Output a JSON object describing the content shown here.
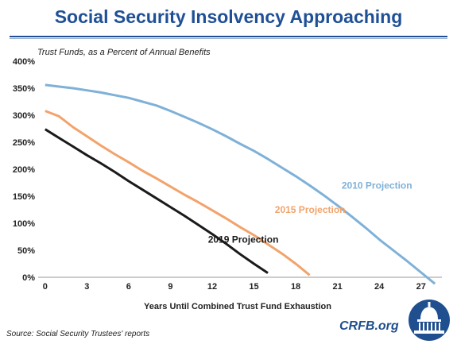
{
  "colors": {
    "title": "#1f5096",
    "rule": "#1f5096",
    "s2010": "#7fb1d8",
    "s2015": "#f2a36b",
    "s2019": "#1a1a1a",
    "logo": "#1f4f8f"
  },
  "title": "Social Security Insolvency Approaching",
  "source": "Source: Social Security Trustees' reports",
  "logo_text": "CRFB.org",
  "logo_icon": "capitol-dome-icon",
  "chart_data": {
    "type": "line",
    "ylabel": "Trust Funds, as a Percent of Annual Benefits",
    "xlabel": "Years Until Combined Trust Fund Exhaustion",
    "xlim": [
      -0.5,
      28.5
    ],
    "ylim": [
      0,
      400
    ],
    "xticks": [
      0,
      3,
      6,
      9,
      12,
      15,
      18,
      21,
      24,
      27
    ],
    "yticks": [
      0,
      50,
      100,
      150,
      200,
      250,
      300,
      350,
      400
    ],
    "yticklabels": [
      "0%",
      "50%",
      "100%",
      "150%",
      "200%",
      "250%",
      "300%",
      "350%",
      "400%"
    ],
    "grid": false,
    "series": [
      {
        "name": "2010 Projection",
        "color_key": "s2010",
        "x": [
          0,
          1,
          2,
          3,
          4,
          5,
          6,
          7,
          8,
          9,
          10,
          11,
          12,
          13,
          14,
          15,
          16,
          17,
          18,
          19,
          20,
          21,
          22,
          23,
          24,
          25,
          26,
          27,
          28
        ],
        "y": [
          356,
          353,
          350,
          346,
          342,
          337,
          332,
          325,
          318,
          308,
          297,
          286,
          274,
          261,
          247,
          234,
          219,
          203,
          187,
          170,
          152,
          133,
          113,
          92,
          70,
          50,
          30,
          9,
          -12
        ]
      },
      {
        "name": "2015 Projection",
        "color_key": "s2015",
        "x": [
          0,
          1,
          2,
          3,
          4,
          5,
          6,
          7,
          8,
          9,
          10,
          11,
          12,
          13,
          14,
          15,
          16,
          17,
          18,
          19
        ],
        "y": [
          308,
          298,
          278,
          261,
          244,
          228,
          213,
          197,
          183,
          168,
          153,
          139,
          124,
          109,
          93,
          78,
          61,
          44,
          25,
          4
        ]
      },
      {
        "name": "2019 Projection",
        "color_key": "s2019",
        "x": [
          0,
          1,
          2,
          3,
          4,
          5,
          6,
          7,
          8,
          9,
          10,
          11,
          12,
          13,
          14,
          15,
          16
        ],
        "y": [
          274,
          258,
          242,
          226,
          211,
          195,
          178,
          162,
          146,
          130,
          114,
          97,
          80,
          62,
          43,
          25,
          8
        ]
      }
    ],
    "series_labels": [
      {
        "text": "2010 Projection",
        "x": 21.3,
        "y": 170
      },
      {
        "text": "2015 Projection",
        "x": 16.5,
        "y": 125
      },
      {
        "text": "2019 Projection",
        "x": 11.7,
        "y": 70
      }
    ]
  }
}
